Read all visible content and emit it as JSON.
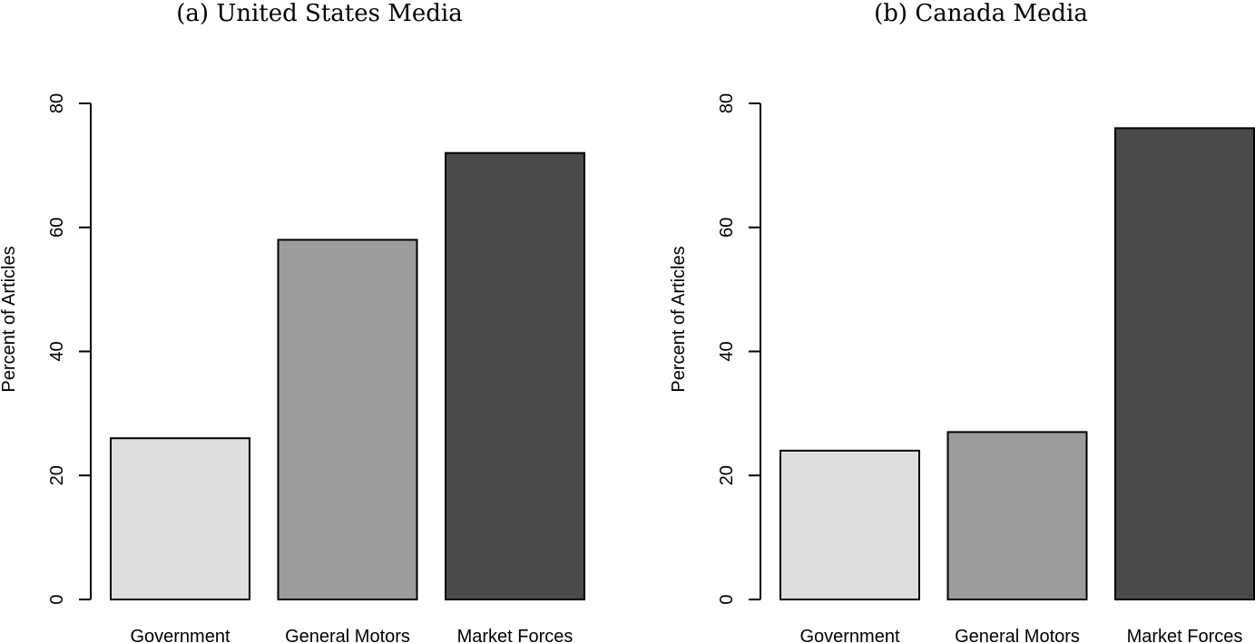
{
  "chart_data": [
    {
      "type": "bar",
      "title": "(a) United States Media",
      "ylabel": "Percent of Articles",
      "xlabel": "",
      "categories": [
        "Government",
        "General Motors",
        "Market Forces"
      ],
      "values": [
        26,
        58,
        72
      ],
      "bar_colors": [
        "#dedede",
        "#9c9c9c",
        "#4a4a4a"
      ],
      "yticks": [
        0,
        20,
        40,
        60,
        80
      ],
      "ylim": [
        0,
        80
      ],
      "grid": false,
      "legend": "none"
    },
    {
      "type": "bar",
      "title": "(b) Canada Media",
      "ylabel": "Percent of Articles",
      "xlabel": "",
      "categories": [
        "Government",
        "General Motors",
        "Market Forces"
      ],
      "values": [
        24,
        27,
        76
      ],
      "bar_colors": [
        "#dedede",
        "#9c9c9c",
        "#4a4a4a"
      ],
      "yticks": [
        0,
        20,
        40,
        60,
        80
      ],
      "ylim": [
        0,
        80
      ],
      "grid": false,
      "legend": "none"
    }
  ]
}
